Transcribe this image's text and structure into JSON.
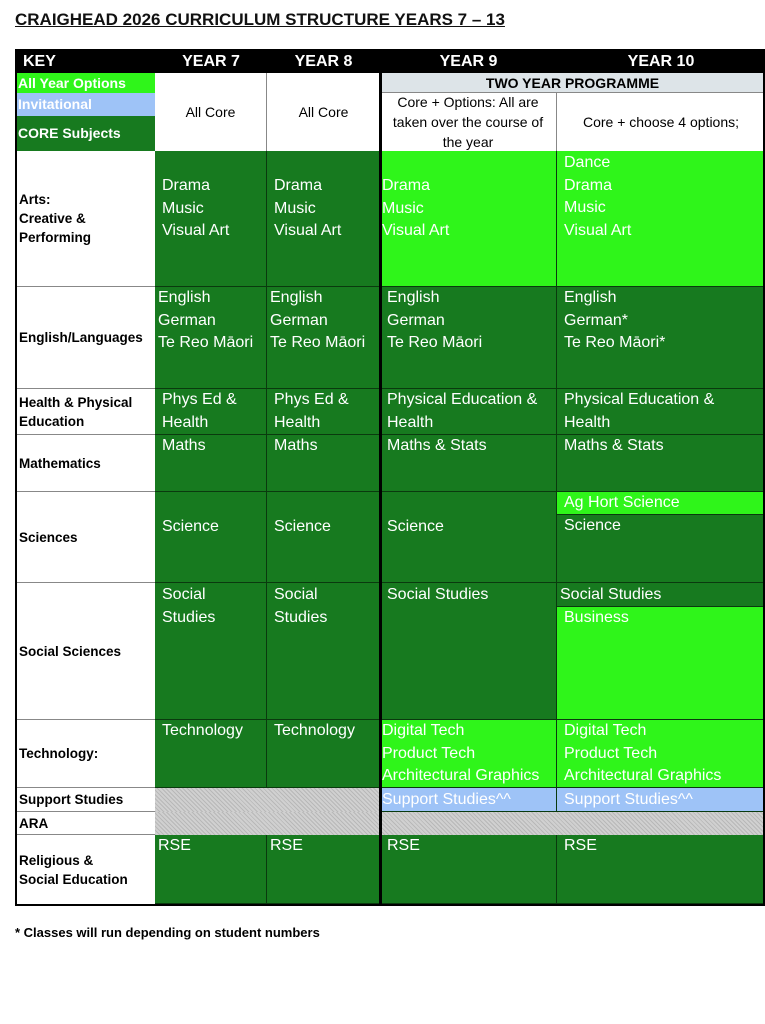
{
  "title": "CRAIGHEAD 2026 CURRICULUM STRUCTURE YEARS 7 – 13",
  "header": {
    "key": "KEY",
    "y7": "YEAR 7",
    "y8": "YEAR 8",
    "y9": "YEAR 9",
    "y10": "YEAR 10"
  },
  "key": {
    "all_year": "All Year Options",
    "invitational": "Invitational",
    "core": "CORE Subjects"
  },
  "colors": {
    "core": "#177a1f",
    "all_year_options": "#2ff51a",
    "invitational": "#9ec3f7",
    "two_year": "#dde4e8"
  },
  "intro": {
    "y7": "All Core",
    "y8": "All Core",
    "two_year": "TWO YEAR PROGRAMME",
    "y9": "Core + Options:  All are\ntaken over the course of\nthe year",
    "y10": "Core + choose 4 options;"
  },
  "rows": {
    "arts": {
      "label": "Arts:\nCreative &\nPerforming",
      "y7": "Drama\nMusic\nVisual Art",
      "y8": "Drama\nMusic\nVisual Art",
      "y9": "Drama\nMusic\nVisual Art",
      "y10": "Dance\nDrama\nMusic\nVisual Art"
    },
    "english": {
      "label": "English/Languages",
      "y7": "English\nGerman\nTe Reo Māori",
      "y8": "English\nGerman\nTe Reo Māori",
      "y9": "English\nGerman\nTe Reo Māori",
      "y10": "English\nGerman*\nTe Reo Māori*"
    },
    "health": {
      "label": "Health & Physical\nEducation",
      "y7": "Phys Ed &\nHealth",
      "y8": "Phys Ed &\nHealth",
      "y9": "Physical Education &\nHealth",
      "y10": "Physical Education &\nHealth"
    },
    "maths": {
      "label": "Mathematics",
      "y7": "Maths",
      "y8": "Maths",
      "y9": "Maths & Stats",
      "y10": "Maths & Stats"
    },
    "sciences": {
      "label": "Sciences",
      "y7": "Science",
      "y8": "Science",
      "y9": "Science",
      "y10_option": "Ag Hort Science",
      "y10": "Science"
    },
    "social": {
      "label": "Social Sciences",
      "y7": "Social\nStudies",
      "y8": "Social\nStudies",
      "y9": "Social Studies",
      "y10": "Social Studies",
      "y10_option": "Business"
    },
    "tech": {
      "label": "Technology:",
      "y7": "Technology",
      "y8": "Technology",
      "y9": "Digital Tech\nProduct Tech\nArchitectural Graphics",
      "y10": "Digital Tech\nProduct Tech\nArchitectural Graphics"
    },
    "support": {
      "label": "Support Studies",
      "y9": "Support Studies^^",
      "y10": "Support Studies^^"
    },
    "ara": {
      "label": "ARA"
    },
    "rse": {
      "label": "Religious &\nSocial Education",
      "y7": "RSE",
      "y8": "RSE",
      "y9": "RSE",
      "y10": "RSE"
    }
  },
  "footnote": "* Classes will run depending on student numbers"
}
